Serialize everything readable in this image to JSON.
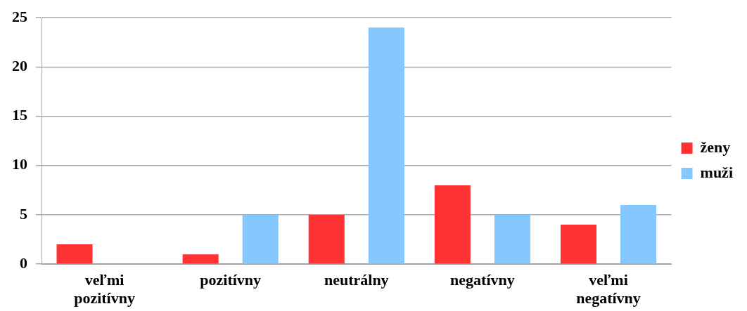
{
  "chart_data": {
    "type": "bar",
    "categories": [
      "veľmi pozitívny",
      "pozitívny",
      "neutrálny",
      "negatívny",
      "veľmi negatívny"
    ],
    "series": [
      {
        "name": "ženy",
        "color": "#ff3333",
        "values": [
          2,
          1,
          5,
          8,
          4
        ]
      },
      {
        "name": "muži",
        "color": "#85c8ff",
        "values": [
          0,
          5,
          24,
          5,
          6
        ]
      }
    ],
    "ylim": [
      0,
      25
    ],
    "yticks": [
      0,
      5,
      10,
      15,
      20,
      25
    ],
    "grid": "y",
    "legend": "right"
  }
}
